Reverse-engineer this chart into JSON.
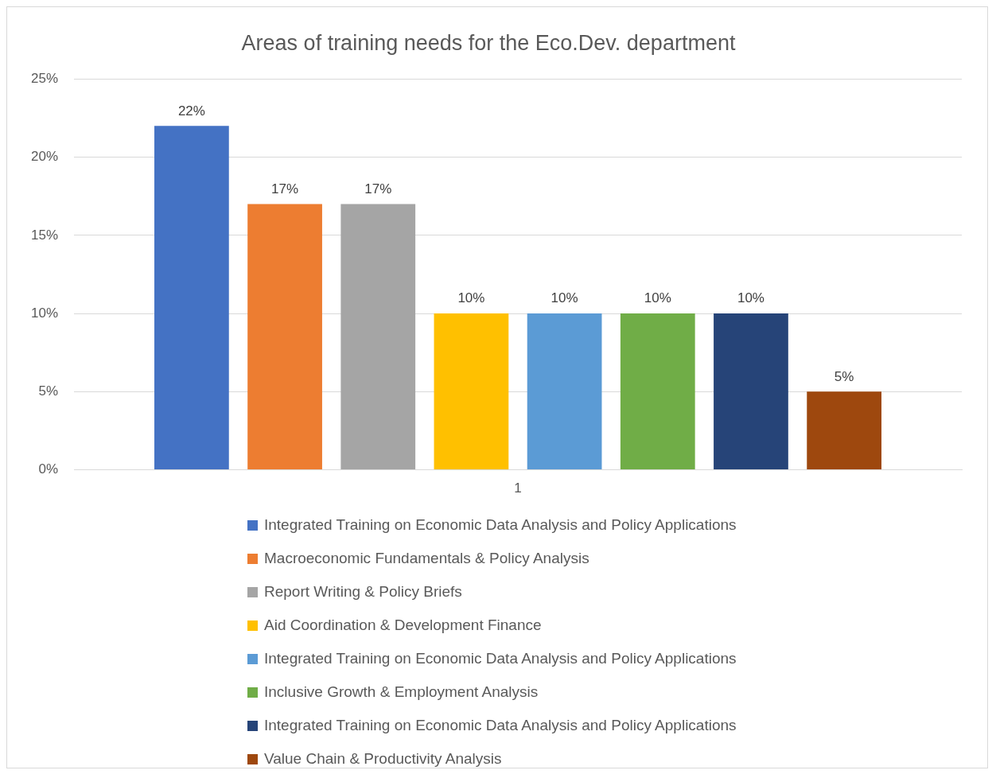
{
  "chart_data": {
    "type": "bar",
    "title": "Areas of training needs for the Eco.Dev. department",
    "categories": [
      "1"
    ],
    "series": [
      {
        "name": "Integrated Training on Economic Data Analysis and Policy Applications",
        "color": "#4472c4",
        "values": [
          22
        ],
        "value_labels": [
          "22%"
        ]
      },
      {
        "name": "Macroeconomic Fundamentals & Policy Analysis",
        "color": "#ed7d31",
        "values": [
          17
        ],
        "value_labels": [
          "17%"
        ]
      },
      {
        "name": "Report Writing & Policy Briefs",
        "color": "#a5a5a5",
        "values": [
          17
        ],
        "value_labels": [
          "17%"
        ]
      },
      {
        "name": "Aid Coordination & Development Finance",
        "color": "#ffc000",
        "values": [
          10
        ],
        "value_labels": [
          "10%"
        ]
      },
      {
        "name": "Integrated Training on Economic Data Analysis and Policy Applications",
        "color": "#5b9bd5",
        "values": [
          10
        ],
        "value_labels": [
          "10%"
        ]
      },
      {
        "name": "Inclusive Growth & Employment Analysis",
        "color": "#70ad47",
        "values": [
          10
        ],
        "value_labels": [
          "10%"
        ]
      },
      {
        "name": "Integrated Training on Economic Data Analysis and Policy Applications",
        "color": "#264478",
        "values": [
          10
        ],
        "value_labels": [
          "10%"
        ]
      },
      {
        "name": "Value Chain & Productivity Analysis",
        "color": "#9e480e",
        "values": [
          5
        ],
        "value_labels": [
          "5%"
        ]
      }
    ],
    "ylim": [
      0,
      25
    ],
    "yticks": [
      {
        "value": 0,
        "label": "0%"
      },
      {
        "value": 5,
        "label": "5%"
      },
      {
        "value": 10,
        "label": "10%"
      },
      {
        "value": 15,
        "label": "15%"
      },
      {
        "value": 20,
        "label": "20%"
      },
      {
        "value": 25,
        "label": "25%"
      }
    ],
    "grid": "y",
    "legend": "bottom"
  }
}
